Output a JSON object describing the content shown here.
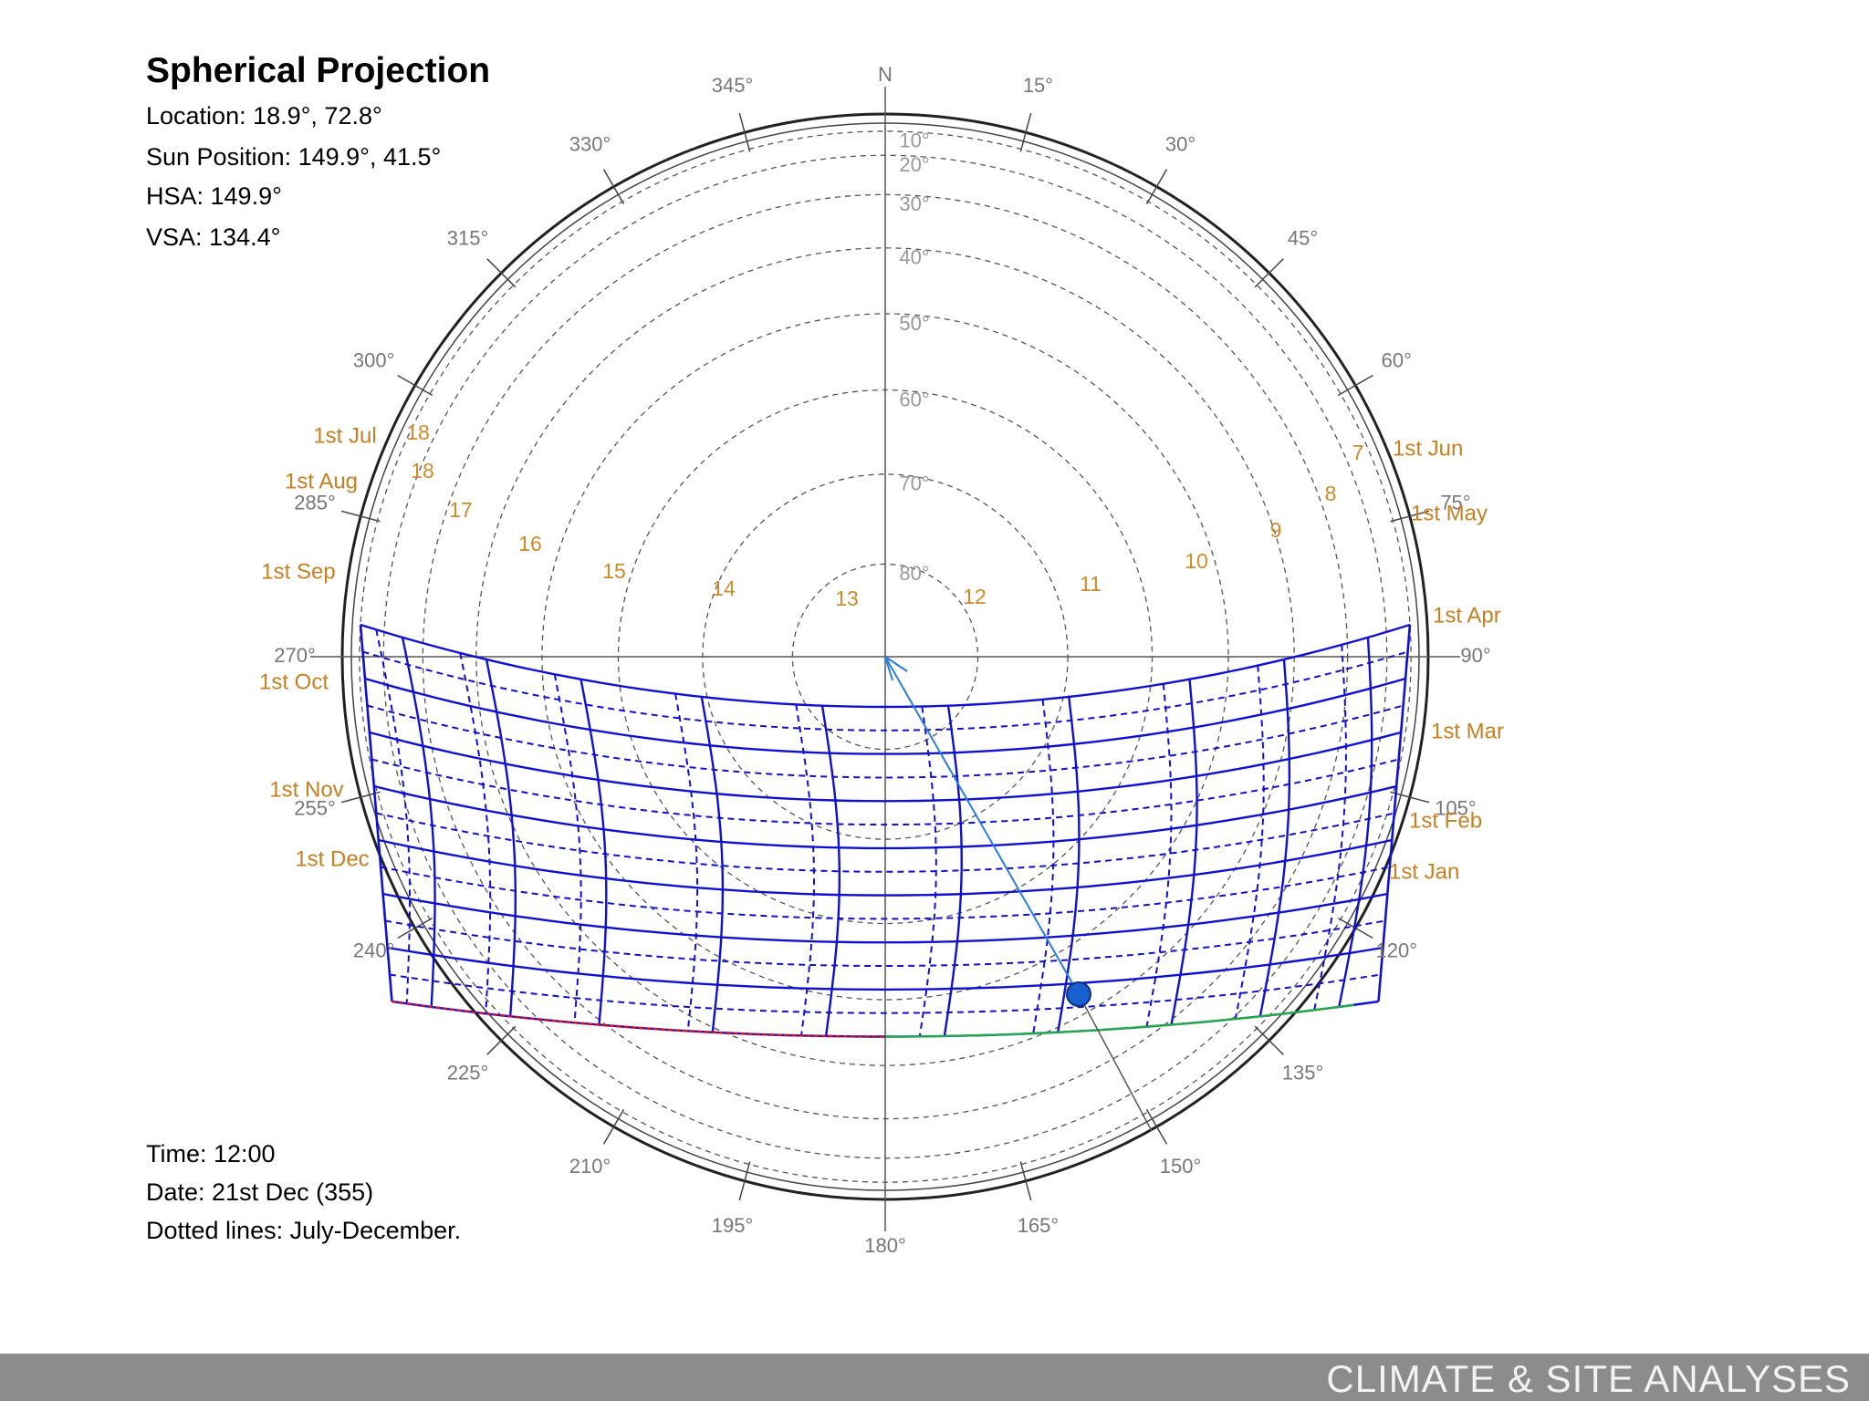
{
  "title": "Spherical Projection",
  "info": {
    "location": "Location: 18.9°, 72.8°",
    "sun_position": "Sun Position: 149.9°, 41.5°",
    "hsa": "HSA: 149.9°",
    "vsa": "VSA: 134.4°",
    "time": "Time: 12:00",
    "date": "Date: 21st Dec (355)",
    "dotted_note": "Dotted lines: July-December."
  },
  "compass": {
    "north": "N",
    "azimuths": [
      {
        "deg": 15,
        "label": "15°"
      },
      {
        "deg": 30,
        "label": "30°"
      },
      {
        "deg": 45,
        "label": "45°"
      },
      {
        "deg": 60,
        "label": "60°"
      },
      {
        "deg": 75,
        "label": "75°"
      },
      {
        "deg": 90,
        "label": "90°"
      },
      {
        "deg": 105,
        "label": "105°"
      },
      {
        "deg": 120,
        "label": "120°"
      },
      {
        "deg": 135,
        "label": "135°"
      },
      {
        "deg": 150,
        "label": "150°"
      },
      {
        "deg": 165,
        "label": "165°"
      },
      {
        "deg": 180,
        "label": "180°"
      },
      {
        "deg": 195,
        "label": "195°"
      },
      {
        "deg": 210,
        "label": "210°"
      },
      {
        "deg": 225,
        "label": "225°"
      },
      {
        "deg": 240,
        "label": "240°"
      },
      {
        "deg": 255,
        "label": "255°"
      },
      {
        "deg": 270,
        "label": "270°"
      },
      {
        "deg": 285,
        "label": "285°"
      },
      {
        "deg": 300,
        "label": "300°"
      },
      {
        "deg": 315,
        "label": "315°"
      },
      {
        "deg": 330,
        "label": "330°"
      },
      {
        "deg": 345,
        "label": "345°"
      }
    ],
    "altitudes": [
      {
        "deg": 10,
        "label": "10°"
      },
      {
        "deg": 20,
        "label": "20°"
      },
      {
        "deg": 30,
        "label": "30°"
      },
      {
        "deg": 40,
        "label": "40°"
      },
      {
        "deg": 50,
        "label": "50°"
      },
      {
        "deg": 60,
        "label": "60°"
      },
      {
        "deg": 70,
        "label": "70°"
      },
      {
        "deg": 80,
        "label": "80°"
      }
    ]
  },
  "hour_labels": [
    "7",
    "8",
    "9",
    "10",
    "11",
    "12",
    "13",
    "14",
    "15",
    "16",
    "17",
    "18",
    "18"
  ],
  "month_labels": {
    "jun": "1st Jun",
    "may": "1st May",
    "apr": "1st Apr",
    "mar": "1st Mar",
    "feb": "1st Feb",
    "jan": "1st Jan",
    "jul": "1st Jul",
    "aug": "1st Aug",
    "sep": "1st Sep",
    "oct": "1st Oct",
    "nov": "1st Nov",
    "dec": "1st Dec"
  },
  "colors": {
    "sunpath": "#1010d0",
    "label": "#d08a2a",
    "grid": "#555555",
    "sun_vector": "#2a7de1"
  },
  "footer": "CLIMATE & SITE ANALYSES"
}
